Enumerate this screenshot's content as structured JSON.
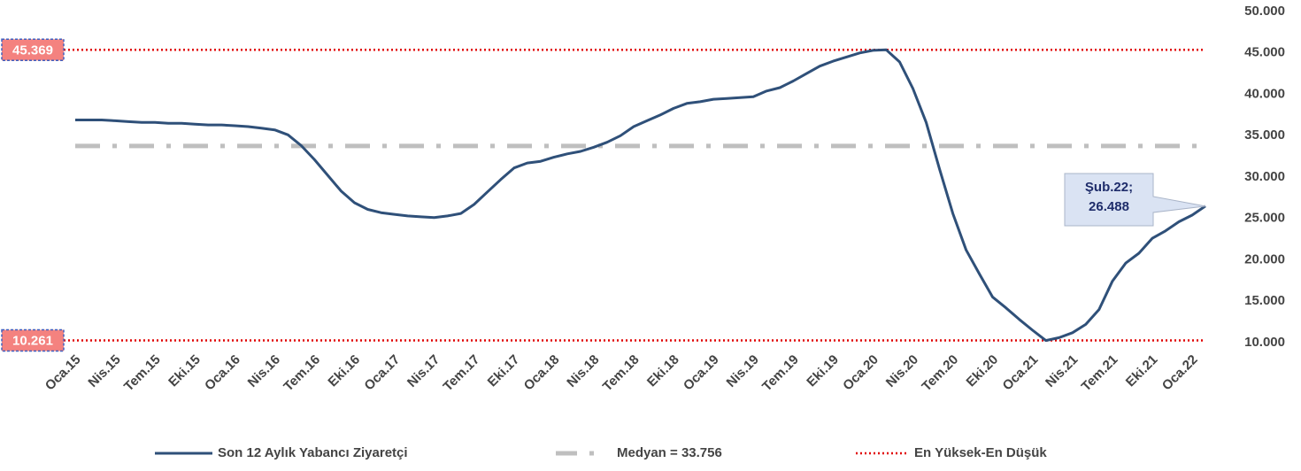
{
  "chart_data": {
    "type": "line",
    "categories": [
      "Oca.15",
      null,
      null,
      "Nis.15",
      null,
      null,
      "Tem.15",
      null,
      null,
      "Eki.15",
      null,
      null,
      "Oca.16",
      null,
      null,
      "Nis.16",
      null,
      null,
      "Tem.16",
      null,
      null,
      "Eki.16",
      null,
      null,
      "Oca.17",
      null,
      null,
      "Nis.17",
      null,
      null,
      "Tem.17",
      null,
      null,
      "Eki.17",
      null,
      null,
      "Oca.18",
      null,
      null,
      "Nis.18",
      null,
      null,
      "Tem.18",
      null,
      null,
      "Eki.18",
      null,
      null,
      "Oca.19",
      null,
      null,
      "Nis.19",
      null,
      null,
      "Tem.19",
      null,
      null,
      "Eki.19",
      null,
      null,
      "Oca.20",
      null,
      null,
      "Nis.20",
      null,
      null,
      "Tem.20",
      null,
      null,
      "Eki.20",
      null,
      null,
      "Oca.21",
      null,
      null,
      "Nis.21",
      null,
      null,
      "Tem.21",
      null,
      null,
      "Eki.21",
      null,
      null,
      "Oca.22",
      null
    ],
    "series": [
      {
        "name": "Son 12 Aylık Yabancı Ziyaretçi",
        "color": "#2f5079",
        "values": [
          36900,
          36900,
          36900,
          36800,
          36700,
          36600,
          36600,
          36500,
          36500,
          36400,
          36300,
          36300,
          36200,
          36100,
          35900,
          35700,
          35100,
          33800,
          32100,
          30200,
          28300,
          26900,
          26100,
          25700,
          25500,
          25300,
          25200,
          25100,
          25300,
          25600,
          26700,
          28200,
          29700,
          31100,
          31700,
          31900,
          32400,
          32800,
          33100,
          33600,
          34200,
          35000,
          36100,
          36800,
          37500,
          38300,
          38900,
          39100,
          39400,
          39500,
          39600,
          39700,
          40400,
          40800,
          41600,
          42500,
          43400,
          44000,
          44500,
          45000,
          45300,
          45369,
          43900,
          40700,
          36600,
          31000,
          25600,
          21200,
          18300,
          15500,
          14200,
          12800,
          11500,
          10261,
          10600,
          11200,
          12200,
          14000,
          17400,
          19600,
          20800,
          22600,
          23500,
          24600,
          25400,
          26488
        ]
      }
    ],
    "median": {
      "name": "Medyan = 33.756",
      "value": 33756,
      "color": "#bfbfbf"
    },
    "extremes": {
      "name": "En Yüksek-En Düşük",
      "color": "#e00000",
      "max": {
        "value": 45369,
        "label": "45.369"
      },
      "min": {
        "value": 10261,
        "label": "10.261"
      }
    },
    "annotation": [
      "Şub.22;",
      "26.488"
    ],
    "ylim": [
      10000,
      50000
    ],
    "yticks": [
      {
        "value": 10000,
        "label": "10.000"
      },
      {
        "value": 15000,
        "label": "15.000"
      },
      {
        "value": 20000,
        "label": "20.000"
      },
      {
        "value": 25000,
        "label": "25.000"
      },
      {
        "value": 30000,
        "label": "30.000"
      },
      {
        "value": 35000,
        "label": "35.000"
      },
      {
        "value": 40000,
        "label": "40.000"
      },
      {
        "value": 45000,
        "label": "45.000"
      },
      {
        "value": 50000,
        "label": "50.000"
      }
    ]
  }
}
